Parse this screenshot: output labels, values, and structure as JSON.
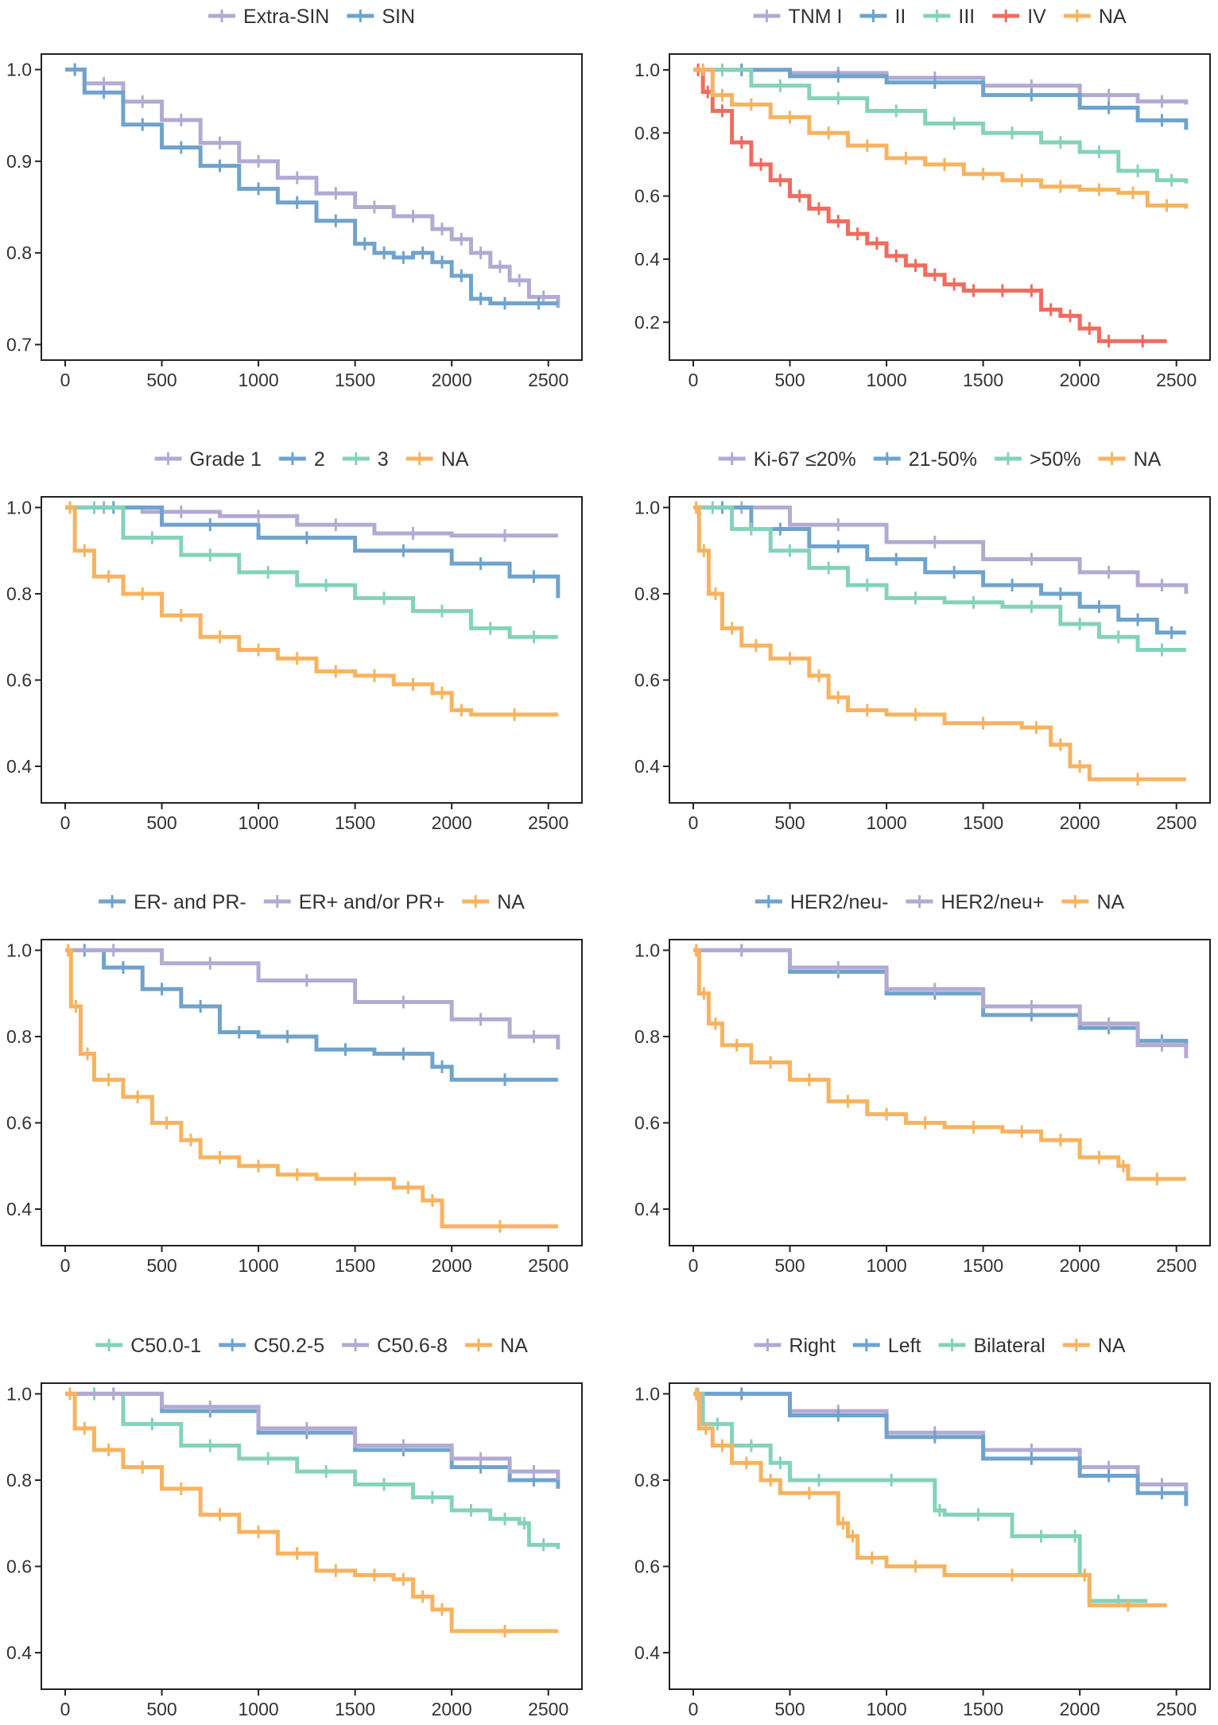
{
  "colors": {
    "lavender": "#b3aad3",
    "blue": "#6fa3cc",
    "teal": "#84d2bb",
    "red": "#ef6c5e",
    "orange": "#f7b35f"
  },
  "chart_data": [
    {
      "type": "line",
      "title": "",
      "xlabel": "",
      "ylabel": "",
      "xlim": [
        0,
        2600
      ],
      "ylim": [
        0.69,
        1.01
      ],
      "xticks": [
        0,
        500,
        1000,
        1500,
        2000,
        2500
      ],
      "yticks": [
        0.7,
        0.8,
        0.9,
        1.0
      ],
      "ytick_labels": [
        "0.7",
        "0.8",
        "0.9",
        "1.0"
      ],
      "legend_position": "top",
      "series": [
        {
          "name": "Extra-SIN",
          "color": "#b3aad3",
          "x": [
            0,
            100,
            300,
            500,
            700,
            900,
            1100,
            1300,
            1500,
            1700,
            1900,
            2000,
            2100,
            2200,
            2300,
            2400,
            2550
          ],
          "y": [
            1.0,
            0.985,
            0.965,
            0.945,
            0.92,
            0.9,
            0.882,
            0.865,
            0.85,
            0.84,
            0.826,
            0.815,
            0.8,
            0.785,
            0.77,
            0.752,
            0.74
          ]
        },
        {
          "name": "SIN",
          "color": "#6fa3cc",
          "x": [
            0,
            100,
            300,
            500,
            700,
            900,
            1100,
            1300,
            1500,
            1600,
            1700,
            1800,
            1900,
            2000,
            2100,
            2200,
            2350,
            2550
          ],
          "y": [
            1.0,
            0.975,
            0.94,
            0.915,
            0.895,
            0.87,
            0.855,
            0.835,
            0.81,
            0.8,
            0.795,
            0.8,
            0.79,
            0.775,
            0.75,
            0.745,
            0.745,
            0.745
          ]
        }
      ]
    },
    {
      "type": "line",
      "title": "",
      "xlabel": "",
      "ylabel": "",
      "xlim": [
        0,
        2600
      ],
      "ylim": [
        0.1,
        1.03
      ],
      "xticks": [
        0,
        500,
        1000,
        1500,
        2000,
        2500
      ],
      "yticks": [
        0.2,
        0.4,
        0.6,
        0.8,
        1.0
      ],
      "ytick_labels": [
        "0.2",
        "0.4",
        "0.6",
        "0.8",
        "1.0"
      ],
      "legend_position": "top",
      "series": [
        {
          "name": "TNM I",
          "color": "#b3aad3",
          "x": [
            0,
            500,
            1000,
            1500,
            2000,
            2300,
            2550
          ],
          "y": [
            1.0,
            0.99,
            0.975,
            0.95,
            0.92,
            0.9,
            0.89
          ]
        },
        {
          "name": "II",
          "color": "#6fa3cc",
          "x": [
            0,
            500,
            1000,
            1500,
            2000,
            2300,
            2550
          ],
          "y": [
            1.0,
            0.98,
            0.96,
            0.92,
            0.88,
            0.84,
            0.81
          ]
        },
        {
          "name": "III",
          "color": "#84d2bb",
          "x": [
            0,
            300,
            600,
            900,
            1200,
            1500,
            1800,
            2000,
            2200,
            2400,
            2550
          ],
          "y": [
            1.0,
            0.95,
            0.91,
            0.87,
            0.83,
            0.8,
            0.77,
            0.74,
            0.68,
            0.65,
            0.64
          ]
        },
        {
          "name": "IV",
          "color": "#ef6c5e",
          "x": [
            0,
            50,
            100,
            200,
            300,
            400,
            500,
            600,
            700,
            800,
            900,
            1000,
            1100,
            1200,
            1300,
            1400,
            1500,
            1700,
            1800,
            1900,
            2000,
            2100,
            2200,
            2450
          ],
          "y": [
            1.0,
            0.93,
            0.87,
            0.77,
            0.7,
            0.65,
            0.6,
            0.56,
            0.52,
            0.48,
            0.45,
            0.41,
            0.38,
            0.35,
            0.32,
            0.3,
            0.3,
            0.3,
            0.24,
            0.22,
            0.18,
            0.14,
            0.14,
            0.14
          ]
        },
        {
          "name": "NA",
          "color": "#f7b35f",
          "x": [
            0,
            100,
            200,
            400,
            600,
            800,
            1000,
            1200,
            1400,
            1600,
            1800,
            2000,
            2200,
            2350,
            2550
          ],
          "y": [
            1.0,
            0.92,
            0.89,
            0.85,
            0.8,
            0.76,
            0.72,
            0.7,
            0.67,
            0.65,
            0.63,
            0.62,
            0.61,
            0.57,
            0.56
          ]
        }
      ]
    },
    {
      "type": "line",
      "title": "",
      "xlabel": "",
      "ylabel": "",
      "xlim": [
        0,
        2600
      ],
      "ylim": [
        0.33,
        1.01
      ],
      "xticks": [
        0,
        500,
        1000,
        1500,
        2000,
        2500
      ],
      "yticks": [
        0.4,
        0.6,
        0.8,
        1.0
      ],
      "ytick_labels": [
        "0.4",
        "0.6",
        "0.8",
        "1.0"
      ],
      "legend_position": "top",
      "series": [
        {
          "name": "Grade 1",
          "color": "#b3aad3",
          "x": [
            0,
            400,
            800,
            1200,
            1600,
            2000,
            2550
          ],
          "y": [
            1.0,
            0.99,
            0.98,
            0.96,
            0.94,
            0.935,
            0.935
          ]
        },
        {
          "name": "2",
          "color": "#6fa3cc",
          "x": [
            0,
            500,
            1000,
            1500,
            2000,
            2300,
            2550
          ],
          "y": [
            1.0,
            0.96,
            0.93,
            0.9,
            0.87,
            0.84,
            0.79
          ]
        },
        {
          "name": "3",
          "color": "#84d2bb",
          "x": [
            0,
            300,
            600,
            900,
            1200,
            1500,
            1800,
            2100,
            2300,
            2550
          ],
          "y": [
            1.0,
            0.93,
            0.89,
            0.85,
            0.82,
            0.79,
            0.76,
            0.72,
            0.7,
            0.7
          ]
        },
        {
          "name": "NA",
          "color": "#f7b35f",
          "x": [
            0,
            50,
            150,
            300,
            500,
            700,
            900,
            1100,
            1300,
            1500,
            1700,
            1900,
            2000,
            2100,
            2550
          ],
          "y": [
            1.0,
            0.9,
            0.84,
            0.8,
            0.75,
            0.7,
            0.67,
            0.65,
            0.62,
            0.61,
            0.59,
            0.57,
            0.53,
            0.52,
            0.52
          ]
        }
      ]
    },
    {
      "type": "line",
      "title": "",
      "xlabel": "",
      "ylabel": "",
      "xlim": [
        0,
        2600
      ],
      "ylim": [
        0.33,
        1.01
      ],
      "xticks": [
        0,
        500,
        1000,
        1500,
        2000,
        2500
      ],
      "yticks": [
        0.4,
        0.6,
        0.8,
        1.0
      ],
      "ytick_labels": [
        "0.4",
        "0.6",
        "0.8",
        "1.0"
      ],
      "legend_position": "top",
      "series": [
        {
          "name": "Ki-67 ≤20%",
          "color": "#b3aad3",
          "x": [
            0,
            500,
            1000,
            1500,
            2000,
            2300,
            2550
          ],
          "y": [
            1.0,
            0.96,
            0.92,
            0.88,
            0.85,
            0.82,
            0.8
          ]
        },
        {
          "name": "21-50%",
          "color": "#6fa3cc",
          "x": [
            0,
            300,
            600,
            900,
            1200,
            1500,
            1800,
            2000,
            2200,
            2400,
            2550
          ],
          "y": [
            1.0,
            0.95,
            0.91,
            0.88,
            0.85,
            0.82,
            0.8,
            0.77,
            0.74,
            0.71,
            0.71
          ]
        },
        {
          "name": ">50%",
          "color": "#84d2bb",
          "x": [
            0,
            200,
            400,
            600,
            800,
            1000,
            1300,
            1600,
            1900,
            2100,
            2300,
            2550
          ],
          "y": [
            1.0,
            0.95,
            0.9,
            0.86,
            0.82,
            0.79,
            0.78,
            0.77,
            0.73,
            0.7,
            0.67,
            0.67
          ]
        },
        {
          "name": "NA",
          "color": "#f7b35f",
          "x": [
            0,
            30,
            80,
            150,
            250,
            400,
            600,
            700,
            800,
            1000,
            1300,
            1700,
            1850,
            1950,
            2050,
            2550
          ],
          "y": [
            1.0,
            0.9,
            0.8,
            0.72,
            0.68,
            0.65,
            0.61,
            0.56,
            0.53,
            0.52,
            0.5,
            0.49,
            0.45,
            0.4,
            0.37,
            0.37
          ]
        }
      ]
    },
    {
      "type": "line",
      "title": "",
      "xlabel": "",
      "ylabel": "",
      "xlim": [
        0,
        2600
      ],
      "ylim": [
        0.33,
        1.01
      ],
      "xticks": [
        0,
        500,
        1000,
        1500,
        2000,
        2500
      ],
      "yticks": [
        0.4,
        0.6,
        0.8,
        1.0
      ],
      "ytick_labels": [
        "0.4",
        "0.6",
        "0.8",
        "1.0"
      ],
      "legend_position": "top",
      "series": [
        {
          "name": "ER- and PR-",
          "color": "#6fa3cc",
          "x": [
            0,
            200,
            400,
            600,
            800,
            1000,
            1300,
            1600,
            1900,
            2000,
            2550
          ],
          "y": [
            1.0,
            0.96,
            0.91,
            0.87,
            0.81,
            0.8,
            0.77,
            0.76,
            0.73,
            0.7,
            0.7
          ]
        },
        {
          "name": "ER+ and/or PR+",
          "color": "#b3aad3",
          "x": [
            0,
            500,
            1000,
            1500,
            2000,
            2300,
            2550
          ],
          "y": [
            1.0,
            0.97,
            0.93,
            0.88,
            0.84,
            0.8,
            0.77
          ]
        },
        {
          "name": "NA",
          "color": "#f7b35f",
          "x": [
            0,
            30,
            80,
            150,
            300,
            450,
            600,
            700,
            900,
            1100,
            1300,
            1700,
            1850,
            1950,
            2550
          ],
          "y": [
            1.0,
            0.87,
            0.76,
            0.7,
            0.66,
            0.6,
            0.56,
            0.52,
            0.5,
            0.48,
            0.47,
            0.45,
            0.42,
            0.36,
            0.36
          ]
        }
      ]
    },
    {
      "type": "line",
      "title": "",
      "xlabel": "",
      "ylabel": "",
      "xlim": [
        0,
        2600
      ],
      "ylim": [
        0.33,
        1.01
      ],
      "xticks": [
        0,
        500,
        1000,
        1500,
        2000,
        2500
      ],
      "yticks": [
        0.4,
        0.6,
        0.8,
        1.0
      ],
      "ytick_labels": [
        "0.4",
        "0.6",
        "0.8",
        "1.0"
      ],
      "legend_position": "top",
      "series": [
        {
          "name": "HER2/neu-",
          "color": "#6fa3cc",
          "x": [
            0,
            500,
            1000,
            1500,
            2000,
            2300,
            2550
          ],
          "y": [
            1.0,
            0.95,
            0.9,
            0.85,
            0.82,
            0.79,
            0.77
          ]
        },
        {
          "name": "HER2/neu+",
          "color": "#b3aad3",
          "x": [
            0,
            500,
            1000,
            1500,
            2000,
            2300,
            2550
          ],
          "y": [
            1.0,
            0.96,
            0.91,
            0.87,
            0.83,
            0.78,
            0.75
          ]
        },
        {
          "name": "NA",
          "color": "#f7b35f",
          "x": [
            0,
            30,
            80,
            150,
            300,
            500,
            700,
            900,
            1100,
            1300,
            1600,
            1800,
            2000,
            2200,
            2250,
            2550
          ],
          "y": [
            1.0,
            0.9,
            0.83,
            0.78,
            0.74,
            0.7,
            0.65,
            0.62,
            0.6,
            0.59,
            0.58,
            0.56,
            0.52,
            0.5,
            0.47,
            0.47
          ]
        }
      ]
    },
    {
      "type": "line",
      "title": "",
      "xlabel": "",
      "ylabel": "",
      "xlim": [
        0,
        2600
      ],
      "ylim": [
        0.33,
        1.01
      ],
      "xticks": [
        0,
        500,
        1000,
        1500,
        2000,
        2500
      ],
      "yticks": [
        0.4,
        0.6,
        0.8,
        1.0
      ],
      "ytick_labels": [
        "0.4",
        "0.6",
        "0.8",
        "1.0"
      ],
      "legend_position": "top",
      "series": [
        {
          "name": "C50.0-1",
          "color": "#84d2bb",
          "x": [
            0,
            300,
            600,
            900,
            1200,
            1500,
            1800,
            2000,
            2200,
            2350,
            2400,
            2550
          ],
          "y": [
            1.0,
            0.93,
            0.88,
            0.85,
            0.82,
            0.79,
            0.76,
            0.73,
            0.71,
            0.7,
            0.65,
            0.64
          ]
        },
        {
          "name": "C50.2-5",
          "color": "#6fa3cc",
          "x": [
            0,
            500,
            1000,
            1500,
            2000,
            2300,
            2550
          ],
          "y": [
            1.0,
            0.96,
            0.91,
            0.87,
            0.83,
            0.8,
            0.78
          ]
        },
        {
          "name": "C50.6-8",
          "color": "#b3aad3",
          "x": [
            0,
            500,
            1000,
            1500,
            2000,
            2300,
            2550
          ],
          "y": [
            1.0,
            0.97,
            0.92,
            0.88,
            0.85,
            0.82,
            0.8
          ]
        },
        {
          "name": "NA",
          "color": "#f7b35f",
          "x": [
            0,
            50,
            150,
            300,
            500,
            700,
            900,
            1100,
            1300,
            1500,
            1700,
            1800,
            1900,
            2000,
            2550
          ],
          "y": [
            1.0,
            0.92,
            0.87,
            0.83,
            0.78,
            0.72,
            0.68,
            0.63,
            0.59,
            0.58,
            0.57,
            0.53,
            0.5,
            0.45,
            0.45
          ]
        }
      ]
    },
    {
      "type": "line",
      "title": "",
      "xlabel": "",
      "ylabel": "",
      "xlim": [
        0,
        2600
      ],
      "ylim": [
        0.33,
        1.01
      ],
      "xticks": [
        0,
        500,
        1000,
        1500,
        2000,
        2500
      ],
      "yticks": [
        0.4,
        0.6,
        0.8,
        1.0
      ],
      "ytick_labels": [
        "0.4",
        "0.6",
        "0.8",
        "1.0"
      ],
      "legend_position": "top",
      "series": [
        {
          "name": "Right",
          "color": "#b3aad3",
          "x": [
            0,
            500,
            1000,
            1500,
            2000,
            2300,
            2550
          ],
          "y": [
            1.0,
            0.96,
            0.91,
            0.87,
            0.83,
            0.79,
            0.77
          ]
        },
        {
          "name": "Left",
          "color": "#6fa3cc",
          "x": [
            0,
            500,
            1000,
            1500,
            2000,
            2300,
            2550
          ],
          "y": [
            1.0,
            0.95,
            0.9,
            0.85,
            0.81,
            0.77,
            0.74
          ]
        },
        {
          "name": "Bilateral",
          "color": "#84d2bb",
          "x": [
            0,
            50,
            200,
            400,
            500,
            800,
            1250,
            1300,
            1650,
            1950,
            2000,
            2050,
            2350
          ],
          "y": [
            1.0,
            0.93,
            0.88,
            0.84,
            0.8,
            0.8,
            0.73,
            0.72,
            0.67,
            0.67,
            0.58,
            0.52,
            0.52
          ]
        },
        {
          "name": "NA",
          "color": "#f7b35f",
          "x": [
            0,
            30,
            100,
            200,
            350,
            450,
            750,
            800,
            850,
            1000,
            1300,
            2000,
            2050,
            2450
          ],
          "y": [
            1.0,
            0.92,
            0.88,
            0.84,
            0.8,
            0.77,
            0.7,
            0.67,
            0.62,
            0.6,
            0.58,
            0.58,
            0.51,
            0.51
          ]
        }
      ]
    }
  ]
}
